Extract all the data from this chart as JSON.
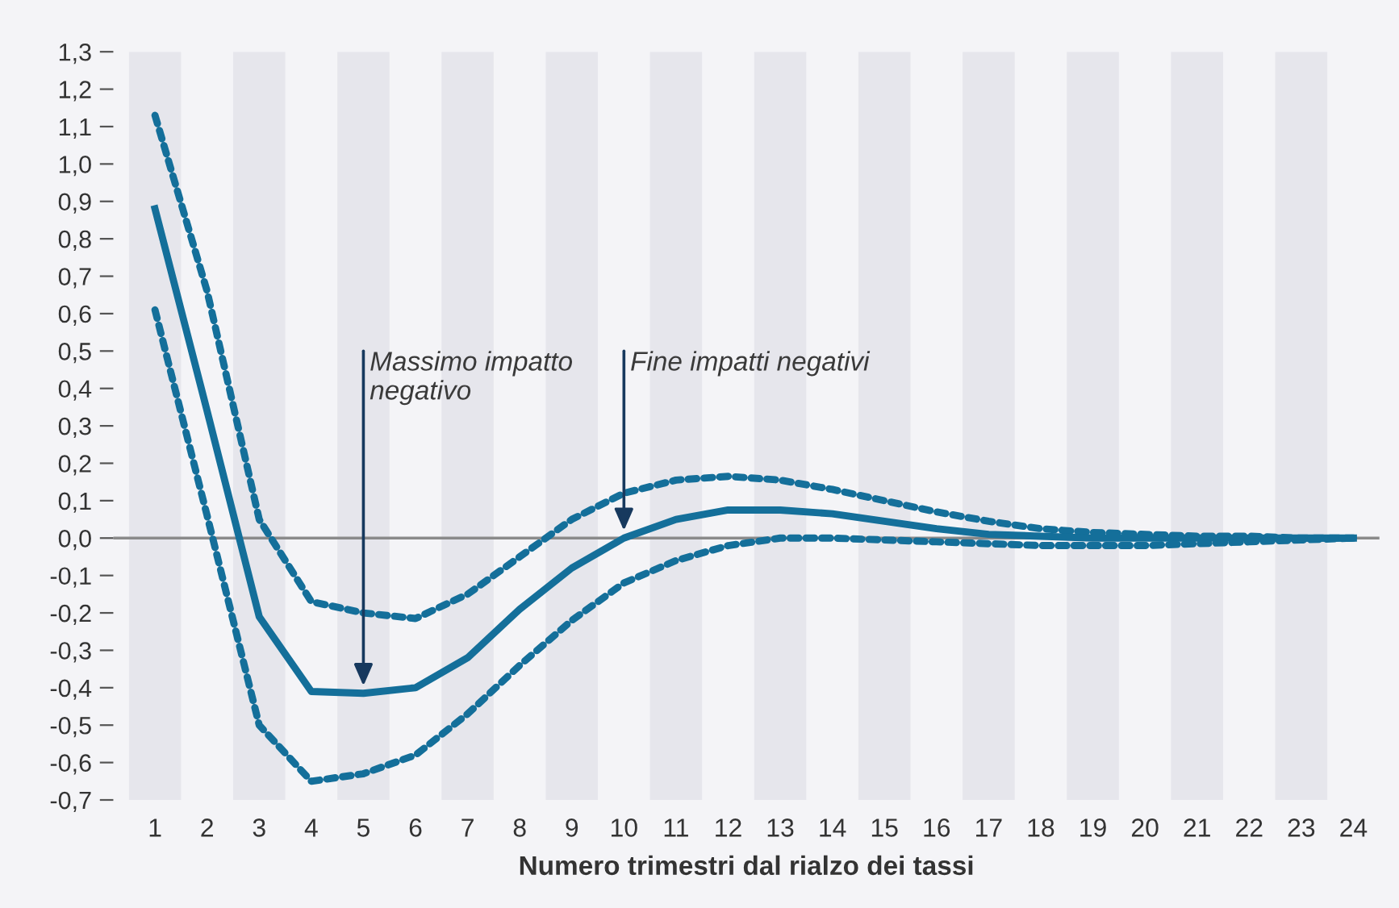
{
  "chart_data": {
    "type": "line",
    "xlabel": "Numero trimestri dal rialzo dei tassi",
    "x": [
      1,
      2,
      3,
      4,
      5,
      6,
      7,
      8,
      9,
      10,
      11,
      12,
      13,
      14,
      15,
      16,
      17,
      18,
      19,
      20,
      21,
      22,
      23,
      24
    ],
    "xlim": [
      0.2,
      24.5
    ],
    "xticks": [
      1,
      2,
      3,
      4,
      5,
      6,
      7,
      8,
      9,
      10,
      11,
      12,
      13,
      14,
      15,
      16,
      17,
      18,
      19,
      20,
      21,
      22,
      23,
      24
    ],
    "ylim": [
      -0.7,
      1.3
    ],
    "yticks": [
      {
        "value": -0.7,
        "label": "-0,7"
      },
      {
        "value": -0.6,
        "label": "-0,6"
      },
      {
        "value": -0.5,
        "label": "-0,5"
      },
      {
        "value": -0.4,
        "label": "-0,4"
      },
      {
        "value": -0.3,
        "label": "-0,3"
      },
      {
        "value": -0.2,
        "label": "-0,2"
      },
      {
        "value": -0.1,
        "label": "-0,1"
      },
      {
        "value": 0,
        "label": "0,0"
      },
      {
        "value": 0.1,
        "label": "0,1"
      },
      {
        "value": 0.2,
        "label": "0,2"
      },
      {
        "value": 0.3,
        "label": "0,3"
      },
      {
        "value": 0.4,
        "label": "0,4"
      },
      {
        "value": 0.5,
        "label": "0,5"
      },
      {
        "value": 0.6,
        "label": "0,6"
      },
      {
        "value": 0.7,
        "label": "0,7"
      },
      {
        "value": 0.8,
        "label": "0,8"
      },
      {
        "value": 0.9,
        "label": "0,9"
      },
      {
        "value": 1.0,
        "label": "1,0"
      },
      {
        "value": 1.1,
        "label": "1,1"
      },
      {
        "value": 1.2,
        "label": "1,2"
      },
      {
        "value": 1.3,
        "label": "1,3"
      }
    ],
    "grid": false,
    "marker": "none",
    "ref_lines": [
      {
        "axis": "y",
        "value": 0,
        "color": "#8a8a8a",
        "line_style": "solid"
      }
    ],
    "series": [
      {
        "color": "#146f9a",
        "line_style": "dashed",
        "values": [
          1.13,
          0.66,
          0.05,
          -0.17,
          -0.2,
          -0.215,
          -0.15,
          -0.05,
          0.05,
          0.12,
          0.155,
          0.165,
          0.155,
          0.13,
          0.1,
          0.07,
          0.045,
          0.025,
          0.015,
          0.01,
          0.005,
          0.005,
          0,
          0
        ]
      },
      {
        "color": "#146f9a",
        "line_style": "solid",
        "values": [
          0.88,
          0.34,
          -0.21,
          -0.41,
          -0.415,
          -0.4,
          -0.32,
          -0.19,
          -0.08,
          0,
          0.05,
          0.075,
          0.075,
          0.065,
          0.045,
          0.025,
          0.01,
          0.005,
          0,
          0,
          0,
          0,
          0,
          0
        ]
      },
      {
        "color": "#146f9a",
        "line_style": "dashed",
        "values": [
          0.61,
          0.06,
          -0.5,
          -0.65,
          -0.63,
          -0.58,
          -0.47,
          -0.34,
          -0.22,
          -0.12,
          -0.06,
          -0.02,
          0,
          0,
          -0.005,
          -0.01,
          -0.015,
          -0.02,
          -0.02,
          -0.02,
          -0.015,
          -0.01,
          -0.005,
          0
        ]
      }
    ],
    "annotations": [
      {
        "text": "Massimo impatto\nnegativo",
        "x": 5,
        "y": -0.415
      },
      {
        "text": "Fine impatti negativi",
        "x": 10,
        "y": 0
      }
    ]
  }
}
